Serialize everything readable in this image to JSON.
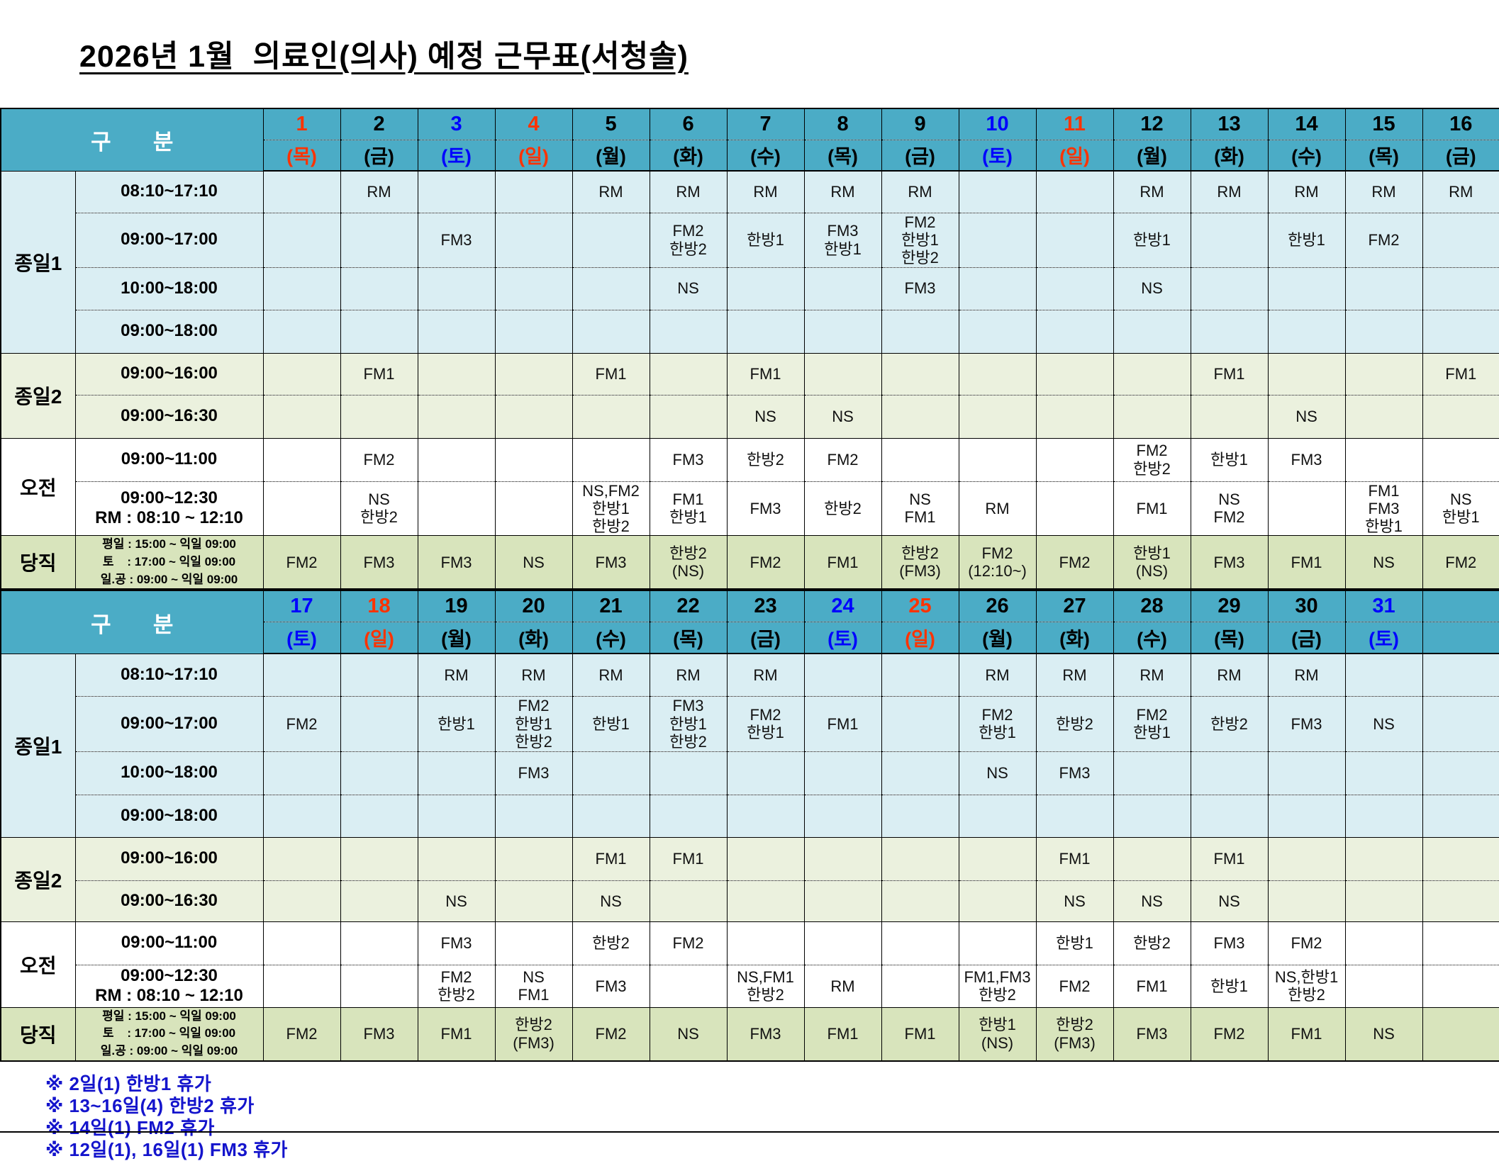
{
  "title": "2026년 1월  의료인(의사) 예정 근무표(서청솔)",
  "header_label": "구  분",
  "colors": {
    "header_teal": "#4BACC6",
    "fullday1_bg": "#DAEEF3",
    "fullday2_bg": "#EBF1DE",
    "morning_bg": "#FFFFFF",
    "duty_bg": "#D8E4BC",
    "holiday_red": "#FF3300",
    "saturday_blue": "#0000FF",
    "footnote_blue": "#1414CC"
  },
  "row_groups": [
    {
      "label": "종일1",
      "bg": "#DAEEF3",
      "times": [
        "08:10~17:10",
        "09:00~17:00",
        "10:00~18:00",
        "09:00~18:00"
      ]
    },
    {
      "label": "종일2",
      "bg": "#EBF1DE",
      "times": [
        "09:00~16:00",
        "09:00~16:30"
      ]
    },
    {
      "label": "오전",
      "bg": "#FFFFFF",
      "times": [
        "09:00~11:00",
        "09:00~12:30\nRM : 08:10 ~ 12:10"
      ]
    }
  ],
  "duty_row": {
    "label": "당직",
    "bg": "#D8E4BC",
    "note": "평일 : 15:00 ~ 익일 09:00\n토    : 17:00 ~ 익일 09:00\n일.공 : 09:00 ~ 익일 09:00"
  },
  "tables": [
    {
      "days": [
        {
          "num": "1",
          "wd": "(목)",
          "color": "red"
        },
        {
          "num": "2",
          "wd": "(금)",
          "color": "black"
        },
        {
          "num": "3",
          "wd": "(토)",
          "color": "blue"
        },
        {
          "num": "4",
          "wd": "(일)",
          "color": "red"
        },
        {
          "num": "5",
          "wd": "(월)",
          "color": "black"
        },
        {
          "num": "6",
          "wd": "(화)",
          "color": "black"
        },
        {
          "num": "7",
          "wd": "(수)",
          "color": "black"
        },
        {
          "num": "8",
          "wd": "(목)",
          "color": "black"
        },
        {
          "num": "9",
          "wd": "(금)",
          "color": "black"
        },
        {
          "num": "10",
          "wd": "(토)",
          "color": "blue"
        },
        {
          "num": "11",
          "wd": "(일)",
          "color": "red"
        },
        {
          "num": "12",
          "wd": "(월)",
          "color": "black"
        },
        {
          "num": "13",
          "wd": "(화)",
          "color": "black"
        },
        {
          "num": "14",
          "wd": "(수)",
          "color": "black"
        },
        {
          "num": "15",
          "wd": "(목)",
          "color": "black"
        },
        {
          "num": "16",
          "wd": "(금)",
          "color": "black"
        }
      ],
      "cells": [
        [
          "",
          "RM",
          "",
          "",
          "RM",
          "RM",
          "RM",
          "RM",
          "RM",
          "",
          "",
          "RM",
          "RM",
          "RM",
          "RM",
          "RM"
        ],
        [
          "",
          "",
          "FM3",
          "",
          "",
          "FM2\n한방2",
          "한방1",
          "FM3\n한방1",
          "FM2\n한방1\n한방2",
          "",
          "",
          "한방1",
          "",
          "한방1",
          "FM2",
          ""
        ],
        [
          "",
          "",
          "",
          "",
          "",
          "NS",
          "",
          "",
          "FM3",
          "",
          "",
          "NS",
          "",
          "",
          "",
          ""
        ],
        [
          "",
          "",
          "",
          "",
          "",
          "",
          "",
          "",
          "",
          "",
          "",
          "",
          "",
          "",
          "",
          ""
        ],
        [
          "",
          "FM1",
          "",
          "",
          "FM1",
          "",
          "FM1",
          "",
          "",
          "",
          "",
          "",
          "FM1",
          "",
          "",
          "FM1"
        ],
        [
          "",
          "",
          "",
          "",
          "",
          "",
          "NS",
          "NS",
          "",
          "",
          "",
          "",
          "",
          "NS",
          "",
          ""
        ],
        [
          "",
          "FM2",
          "",
          "",
          "",
          "FM3",
          "한방2",
          "FM2",
          "",
          "",
          "",
          "FM2\n한방2",
          "한방1",
          "FM3",
          "",
          ""
        ],
        [
          "",
          "NS\n한방2",
          "",
          "",
          "NS,FM2\n한방1\n한방2",
          "FM1\n한방1",
          "FM3",
          "한방2",
          "NS\nFM1",
          "RM",
          "",
          "FM1",
          "NS\nFM2",
          "",
          "FM1\nFM3\n한방1",
          "NS\n한방1"
        ],
        [
          "FM2",
          "FM3",
          "FM3",
          "NS",
          "FM3",
          "한방2\n(NS)",
          "FM2",
          "FM1",
          "한방2\n(FM3)",
          "FM2\n(12:10~)",
          "FM2",
          "한방1\n(NS)",
          "FM3",
          "FM1",
          "NS",
          "FM2"
        ]
      ]
    },
    {
      "days": [
        {
          "num": "17",
          "wd": "(토)",
          "color": "blue"
        },
        {
          "num": "18",
          "wd": "(일)",
          "color": "red"
        },
        {
          "num": "19",
          "wd": "(월)",
          "color": "black"
        },
        {
          "num": "20",
          "wd": "(화)",
          "color": "black"
        },
        {
          "num": "21",
          "wd": "(수)",
          "color": "black"
        },
        {
          "num": "22",
          "wd": "(목)",
          "color": "black"
        },
        {
          "num": "23",
          "wd": "(금)",
          "color": "black"
        },
        {
          "num": "24",
          "wd": "(토)",
          "color": "blue"
        },
        {
          "num": "25",
          "wd": "(일)",
          "color": "red"
        },
        {
          "num": "26",
          "wd": "(월)",
          "color": "black"
        },
        {
          "num": "27",
          "wd": "(화)",
          "color": "black"
        },
        {
          "num": "28",
          "wd": "(수)",
          "color": "black"
        },
        {
          "num": "29",
          "wd": "(목)",
          "color": "black"
        },
        {
          "num": "30",
          "wd": "(금)",
          "color": "black"
        },
        {
          "num": "31",
          "wd": "(토)",
          "color": "blue"
        },
        {
          "num": "",
          "wd": "",
          "color": "black"
        }
      ],
      "cells": [
        [
          "",
          "",
          "RM",
          "RM",
          "RM",
          "RM",
          "RM",
          "",
          "",
          "RM",
          "RM",
          "RM",
          "RM",
          "RM",
          "",
          ""
        ],
        [
          "FM2",
          "",
          "한방1",
          "FM2\n한방1\n한방2",
          "한방1",
          "FM3\n한방1\n한방2",
          "FM2\n한방1",
          "FM1",
          "",
          "FM2\n한방1",
          "한방2",
          "FM2\n한방1",
          "한방2",
          "FM3",
          "NS",
          ""
        ],
        [
          "",
          "",
          "",
          "FM3",
          "",
          "",
          "",
          "",
          "",
          "NS",
          "FM3",
          "",
          "",
          "",
          "",
          ""
        ],
        [
          "",
          "",
          "",
          "",
          "",
          "",
          "",
          "",
          "",
          "",
          "",
          "",
          "",
          "",
          "",
          ""
        ],
        [
          "",
          "",
          "",
          "",
          "FM1",
          "FM1",
          "",
          "",
          "",
          "",
          "FM1",
          "",
          "FM1",
          "",
          "",
          ""
        ],
        [
          "",
          "",
          "NS",
          "",
          "NS",
          "",
          "",
          "",
          "",
          "",
          "NS",
          "NS",
          "NS",
          "",
          "",
          ""
        ],
        [
          "",
          "",
          "FM3",
          "",
          "한방2",
          "FM2",
          "",
          "",
          "",
          "",
          "한방1",
          "한방2",
          "FM3",
          "FM2",
          "",
          ""
        ],
        [
          "",
          "",
          "FM2\n한방2",
          "NS\nFM1",
          "FM3",
          "",
          "NS,FM1\n한방2",
          "RM",
          "",
          "FM1,FM3\n한방2",
          "FM2",
          "FM1",
          "한방1",
          "NS,한방1\n한방2",
          "",
          ""
        ],
        [
          "FM2",
          "FM3",
          "FM1",
          "한방2\n(FM3)",
          "FM2",
          "NS",
          "FM3",
          "FM1",
          "FM1",
          "한방1\n(NS)",
          "한방2\n(FM3)",
          "FM3",
          "FM2",
          "FM1",
          "NS",
          ""
        ]
      ]
    }
  ],
  "footnotes": [
    "※ 2일(1) 한방1 휴가",
    "※ 13~16일(4) 한방2 휴가",
    "※ 14일(1) FM2 휴가",
    "※ 12일(1), 16일(1) FM3 휴가"
  ]
}
